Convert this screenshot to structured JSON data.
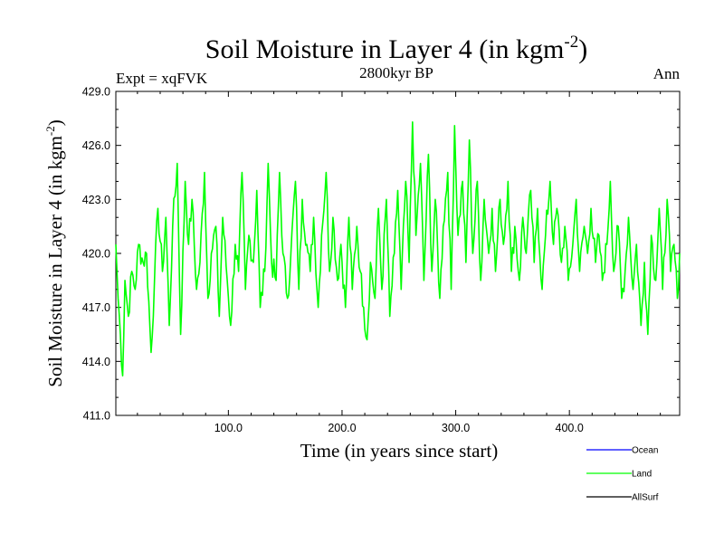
{
  "chart_data": {
    "type": "line",
    "title": "Soil Moisture in Layer 4 (in kgm",
    "title_sup": "-2",
    "title_tail": ")",
    "subtitle": "2800kyr BP",
    "left_label": "Expt = xqFVK",
    "right_label": "Ann",
    "xlabel": "Time (in years since start)",
    "ylabel": "Soil Moisture in Layer 4 (in kgm",
    "ylabel_sup": "-2",
    "ylabel_tail": ")",
    "xlim": [
      1,
      497
    ],
    "ylim": [
      411,
      429
    ],
    "x_ticks": [
      100,
      200,
      300,
      400
    ],
    "x_tick_labels": [
      "100.0",
      "200.0",
      "300.0",
      "400.0"
    ],
    "y_ticks": [
      411,
      414,
      417,
      420,
      423,
      426,
      429
    ],
    "y_tick_labels": [
      "411.0",
      "414.0",
      "417.0",
      "420.0",
      "423.0",
      "426.0",
      "429.0"
    ],
    "legend": [
      {
        "name": "Ocean",
        "color": "#0000ff"
      },
      {
        "name": "Land",
        "color": "#00ff00"
      },
      {
        "name": "AllSurf",
        "color": "#000000"
      }
    ],
    "series": [
      {
        "name": "Land",
        "color": "#00ff00",
        "anchors": [
          [
            1,
            420.5
          ],
          [
            3,
            417.5
          ],
          [
            5,
            415.5
          ],
          [
            7,
            413.2
          ],
          [
            9,
            418.5
          ],
          [
            12,
            416.5
          ],
          [
            15,
            419.0
          ],
          [
            18,
            418.0
          ],
          [
            21,
            420.5
          ],
          [
            25,
            419.5
          ],
          [
            28,
            420.0
          ],
          [
            32,
            414.5
          ],
          [
            35,
            418.5
          ],
          [
            38,
            422.5
          ],
          [
            42,
            419.0
          ],
          [
            45,
            422.0
          ],
          [
            48,
            416.0
          ],
          [
            51,
            421.5
          ],
          [
            55,
            425.0
          ],
          [
            58,
            415.5
          ],
          [
            62,
            424.0
          ],
          [
            65,
            420.5
          ],
          [
            68,
            423.0
          ],
          [
            72,
            418.0
          ],
          [
            75,
            419.5
          ],
          [
            79,
            424.5
          ],
          [
            82,
            417.5
          ],
          [
            85,
            420.0
          ],
          [
            89,
            421.5
          ],
          [
            92,
            416.5
          ],
          [
            95,
            422.0
          ],
          [
            99,
            418.5
          ],
          [
            102,
            416.0
          ],
          [
            106,
            420.5
          ],
          [
            109,
            419.0
          ],
          [
            112,
            424.5
          ],
          [
            115,
            418.0
          ],
          [
            118,
            421.0
          ],
          [
            122,
            419.5
          ],
          [
            125,
            423.5
          ],
          [
            128,
            417.0
          ],
          [
            132,
            419.0
          ],
          [
            135,
            425.0
          ],
          [
            138,
            419.5
          ],
          [
            142,
            418.5
          ],
          [
            145,
            424.5
          ],
          [
            148,
            420.0
          ],
          [
            152,
            417.5
          ],
          [
            155,
            420.0
          ],
          [
            159,
            424.0
          ],
          [
            162,
            418.0
          ],
          [
            165,
            423.0
          ],
          [
            169,
            420.5
          ],
          [
            172,
            419.0
          ],
          [
            175,
            422.0
          ],
          [
            179,
            417.0
          ],
          [
            182,
            421.0
          ],
          [
            186,
            424.5
          ],
          [
            189,
            419.0
          ],
          [
            192,
            422.0
          ],
          [
            196,
            418.5
          ],
          [
            199,
            420.5
          ],
          [
            203,
            417.0
          ],
          [
            206,
            422.0
          ],
          [
            209,
            418.0
          ],
          [
            213,
            421.5
          ],
          [
            216,
            419.0
          ],
          [
            219,
            417.0
          ],
          [
            222,
            415.2
          ],
          [
            225,
            419.5
          ],
          [
            229,
            417.5
          ],
          [
            232,
            422.5
          ],
          [
            235,
            418.0
          ],
          [
            239,
            423.0
          ],
          [
            242,
            416.5
          ],
          [
            246,
            420.0
          ],
          [
            249,
            423.5
          ],
          [
            252,
            418.0
          ],
          [
            256,
            424.0
          ],
          [
            259,
            419.5
          ],
          [
            262,
            427.3
          ],
          [
            265,
            421.0
          ],
          [
            269,
            425.0
          ],
          [
            272,
            418.5
          ],
          [
            276,
            425.5
          ],
          [
            279,
            419.0
          ],
          [
            282,
            423.0
          ],
          [
            286,
            417.5
          ],
          [
            289,
            421.5
          ],
          [
            293,
            424.5
          ],
          [
            296,
            418.0
          ],
          [
            299,
            427.1
          ],
          [
            302,
            421.0
          ],
          [
            306,
            424.0
          ],
          [
            309,
            419.5
          ],
          [
            312,
            426.3
          ],
          [
            315,
            420.0
          ],
          [
            319,
            424.0
          ],
          [
            322,
            418.5
          ],
          [
            325,
            423.0
          ],
          [
            329,
            420.0
          ],
          [
            332,
            422.5
          ],
          [
            335,
            419.0
          ],
          [
            339,
            423.0
          ],
          [
            342,
            420.5
          ],
          [
            346,
            424.0
          ],
          [
            349,
            419.0
          ],
          [
            352,
            421.5
          ],
          [
            356,
            418.5
          ],
          [
            359,
            422.0
          ],
          [
            362,
            420.0
          ],
          [
            366,
            423.5
          ],
          [
            369,
            419.5
          ],
          [
            372,
            422.5
          ],
          [
            376,
            418.0
          ],
          [
            379,
            421.0
          ],
          [
            383,
            424.0
          ],
          [
            386,
            420.5
          ],
          [
            389,
            422.5
          ],
          [
            393,
            419.5
          ],
          [
            396,
            421.5
          ],
          [
            399,
            418.5
          ],
          [
            403,
            420.5
          ],
          [
            406,
            423.0
          ],
          [
            409,
            419.0
          ],
          [
            413,
            421.5
          ],
          [
            416,
            420.0
          ],
          [
            419,
            422.5
          ],
          [
            423,
            419.5
          ],
          [
            426,
            421.0
          ],
          [
            429,
            418.5
          ],
          [
            433,
            420.5
          ],
          [
            436,
            424.0
          ],
          [
            439,
            419.0
          ],
          [
            443,
            421.5
          ],
          [
            446,
            417.5
          ],
          [
            449,
            419.0
          ],
          [
            452,
            422.0
          ],
          [
            456,
            418.0
          ],
          [
            459,
            420.5
          ],
          [
            463,
            416.0
          ],
          [
            466,
            419.5
          ],
          [
            469,
            415.5
          ],
          [
            472,
            421.0
          ],
          [
            476,
            418.5
          ],
          [
            479,
            422.5
          ],
          [
            482,
            418.0
          ],
          [
            486,
            423.0
          ],
          [
            489,
            419.0
          ],
          [
            492,
            420.5
          ],
          [
            495,
            417.5
          ],
          [
            497,
            420.0
          ]
        ]
      }
    ]
  }
}
